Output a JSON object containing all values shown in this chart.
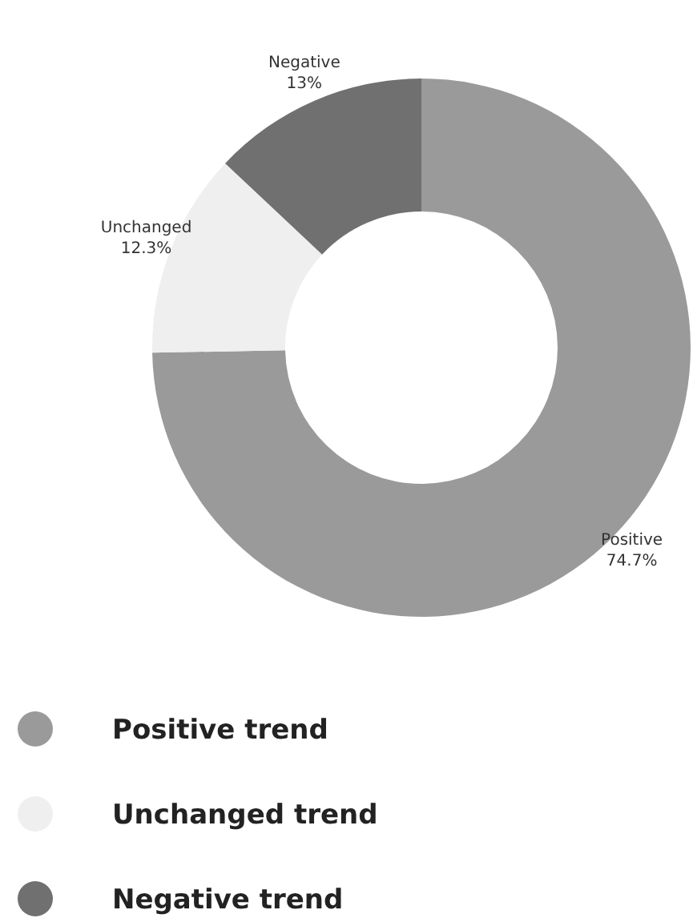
{
  "chart_data": {
    "type": "donut",
    "categories": [
      "Positive trend",
      "Unchanged trend",
      "Negative trend"
    ],
    "values": [
      74.7,
      12.3,
      13
    ],
    "colors": [
      "#9a9a9a",
      "#efefef",
      "#707070"
    ],
    "value_labels": [
      "74.7%",
      "12.3%",
      "13%"
    ],
    "annotations": [
      "Positive",
      "Unchanged",
      "Negative"
    ],
    "legend": "bottom"
  }
}
